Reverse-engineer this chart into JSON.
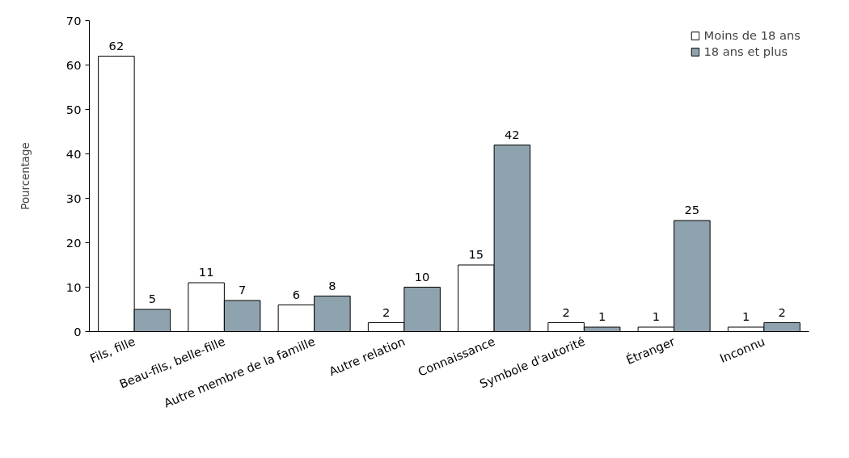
{
  "chart_data": {
    "type": "bar",
    "ylabel": "Pourcentage",
    "categories": [
      "Fils, fille",
      "Beau-fils, belle-fille",
      "Autre membre de la famille",
      "Autre relation",
      "Connaissance",
      "Symbole d'autorité",
      "Étranger",
      "Inconnu"
    ],
    "series": [
      {
        "name": "Moins de 18 ans",
        "color": "#ffffff",
        "values": [
          62,
          11,
          6,
          2,
          15,
          2,
          1,
          1
        ]
      },
      {
        "name": "18 ans et plus",
        "color": "#8fa3ae",
        "values": [
          5,
          7,
          8,
          10,
          42,
          1,
          25,
          2
        ]
      }
    ],
    "ylim": [
      0,
      70
    ],
    "yticks": [
      0,
      10,
      20,
      30,
      40,
      50,
      60,
      70
    ],
    "grid": false,
    "legend": "top right",
    "data_labels": true
  }
}
